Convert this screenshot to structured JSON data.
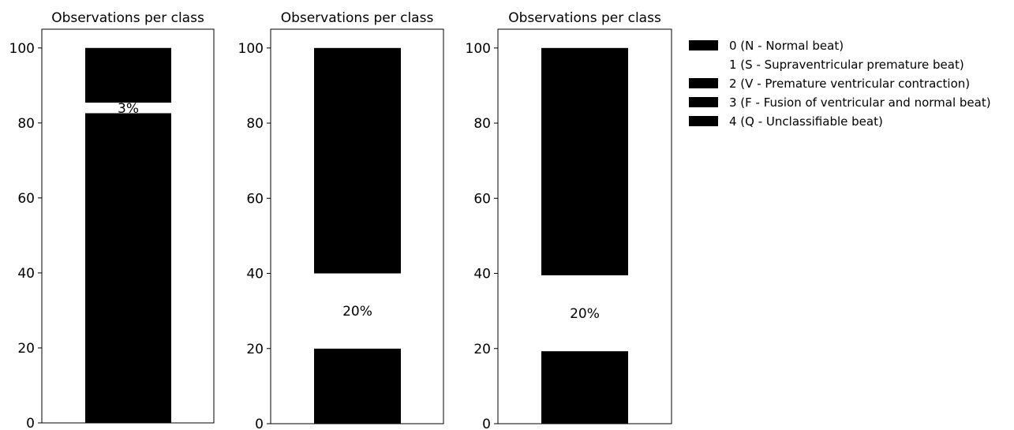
{
  "chart_data": [
    {
      "type": "bar",
      "title": "Observations per class",
      "ylim": [
        0,
        105
      ],
      "yticks": [
        0,
        20,
        40,
        60,
        80,
        100
      ],
      "segments": [
        {
          "class": "0",
          "from": 0,
          "to": 82.6
        },
        {
          "class": "1",
          "from": 82.6,
          "to": 85.4
        },
        {
          "class": "2",
          "from": 85.4,
          "to": 100
        }
      ],
      "labels": [
        {
          "text": "3%",
          "at": 84.0
        }
      ]
    },
    {
      "type": "bar",
      "title": "Observations per class",
      "ylim": [
        0,
        105
      ],
      "yticks": [
        0,
        20,
        40,
        60,
        80,
        100
      ],
      "segments": [
        {
          "class": "0",
          "from": 0,
          "to": 20
        },
        {
          "class": "1",
          "from": 20,
          "to": 40
        },
        {
          "class": "2",
          "from": 40,
          "to": 100
        }
      ],
      "labels": [
        {
          "text": "20%",
          "at": 30
        }
      ]
    },
    {
      "type": "bar",
      "title": "Observations per class",
      "ylim": [
        0,
        105
      ],
      "yticks": [
        0,
        20,
        40,
        60,
        80,
        100
      ],
      "segments": [
        {
          "class": "0",
          "from": 0,
          "to": 19.3
        },
        {
          "class": "1",
          "from": 19.3,
          "to": 39.5
        },
        {
          "class": "2",
          "from": 39.5,
          "to": 100
        }
      ],
      "labels": [
        {
          "text": "20%",
          "at": 29.4
        }
      ]
    }
  ],
  "legend": {
    "placement": "right",
    "entries": [
      {
        "label": "0 (N - Normal beat)",
        "color": "#000000"
      },
      {
        "label": "1 (S - Supraventricular premature beat)",
        "color": "#ffffff"
      },
      {
        "label": "2 (V - Premature ventricular contraction)",
        "color": "#000000"
      },
      {
        "label": "3 (F - Fusion of ventricular and normal beat)",
        "color": "#000000"
      },
      {
        "label": "4 (Q - Unclassifiable beat)",
        "color": "#000000"
      }
    ]
  },
  "colors": {
    "bar": "#000000",
    "gap": "#ffffff"
  }
}
